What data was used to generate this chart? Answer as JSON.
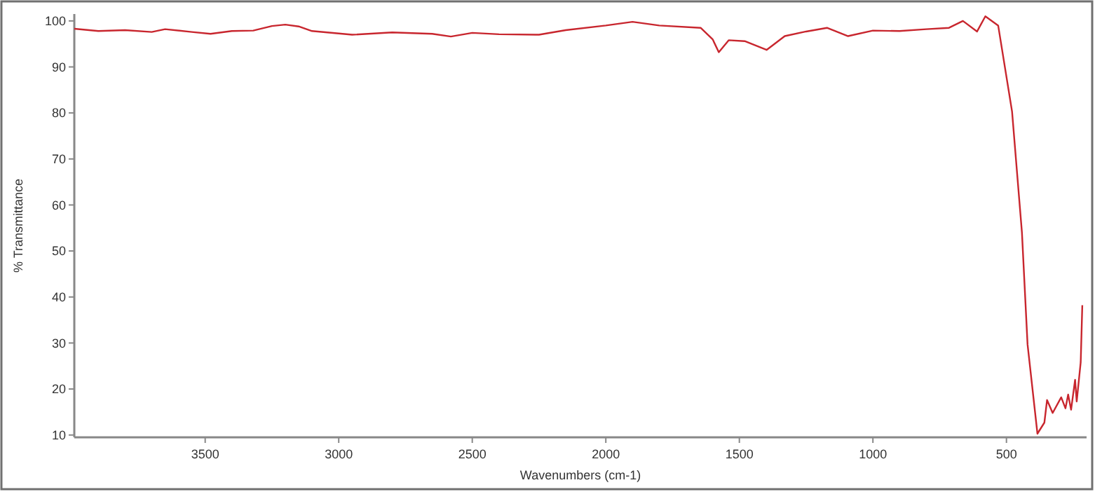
{
  "chart_data": {
    "type": "line",
    "xlabel": "Wavenumbers (cm-1)",
    "ylabel": "% Transmittance",
    "xlim": [
      3990,
      200
    ],
    "ylim": [
      9.5,
      101.5
    ],
    "xticks": [
      3500,
      3000,
      2500,
      2000,
      1500,
      1000,
      500
    ],
    "yticks": [
      10,
      20,
      30,
      40,
      50,
      60,
      70,
      80,
      90,
      100
    ],
    "grid": false,
    "x": [
      3990,
      3900,
      3800,
      3700,
      3650,
      3550,
      3480,
      3400,
      3320,
      3250,
      3200,
      3150,
      3100,
      2950,
      2800,
      2650,
      2580,
      2500,
      2400,
      2250,
      2150,
      2000,
      1900,
      1800,
      1645,
      1600,
      1577,
      1540,
      1480,
      1398,
      1330,
      1250,
      1172,
      1093,
      1000,
      900,
      800,
      715,
      663,
      610,
      579,
      531,
      479,
      442,
      421,
      384,
      358,
      348,
      327,
      295,
      279,
      269,
      258,
      243,
      237,
      222,
      216
    ],
    "series": [
      {
        "color": "#c8262e",
        "values": [
          98.3,
          97.8,
          98,
          97.6,
          98.2,
          97.6,
          97.2,
          97.8,
          97.9,
          98.9,
          99.2,
          98.8,
          97.8,
          97,
          97.5,
          97.2,
          96.6,
          97.4,
          97.1,
          97,
          98,
          99,
          99.8,
          99,
          98.5,
          96,
          93.2,
          95.8,
          95.6,
          93.7,
          96.7,
          97.7,
          98.5,
          96.7,
          97.9,
          97.8,
          98.2,
          98.5,
          100,
          97.7,
          101,
          99,
          80.3,
          54,
          29.7,
          10.3,
          12.7,
          17.6,
          14.8,
          18.2,
          15.8,
          18.8,
          15.5,
          22,
          17.3,
          25.8,
          38.2
        ]
      }
    ]
  }
}
